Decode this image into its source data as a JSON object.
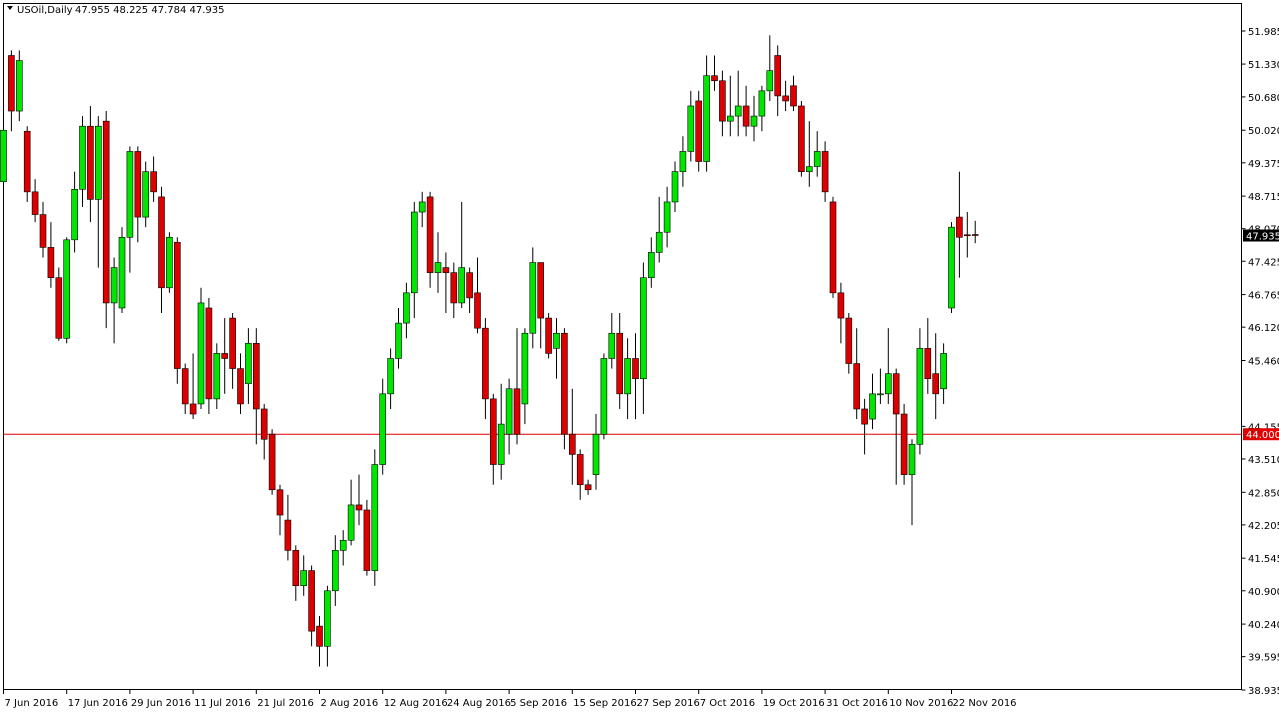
{
  "header": {
    "symbol_timeframe": "USOil,Daily",
    "ohlc": "47.955 48.225 47.784 47.935"
  },
  "chart_data": {
    "type": "candlestick",
    "symbol": "USOil",
    "timeframe": "Daily",
    "last_price": "47.935",
    "horizontal_line": {
      "value": "44.000",
      "color": "#e00000"
    },
    "grid": false,
    "price_range": [
      38.935,
      51.985
    ],
    "y_ticks": [
      "51.985",
      "51.330",
      "50.680",
      "50.020",
      "49.375",
      "48.715",
      "48.070",
      "47.425",
      "46.765",
      "46.120",
      "45.460",
      "44.155",
      "43.510",
      "42.850",
      "42.205",
      "41.545",
      "40.900",
      "40.240",
      "39.595",
      "38.935"
    ],
    "x_ticks": [
      "7 Jun 2016",
      "17 Jun 2016",
      "29 Jun 2016",
      "11 Jul 2016",
      "21 Jul 2016",
      "2 Aug 2016",
      "12 Aug 2016",
      "24 Aug 2016",
      "5 Sep 2016",
      "15 Sep 2016",
      "27 Sep 2016",
      "7 Oct 2016",
      "19 Oct 2016",
      "31 Oct 2016",
      "10 Nov 2016",
      "22 Nov 2016"
    ],
    "x_tick_bar_index": [
      0,
      8,
      16,
      24,
      32,
      40,
      48,
      56,
      64,
      72,
      80,
      88,
      96,
      104,
      112,
      120
    ],
    "colors": {
      "up": "#00e600",
      "down": "#dc0000",
      "outline": "#000000",
      "last_price_bg": "#000000",
      "level_line": "#e00000"
    },
    "candles": [
      [
        49.0,
        50.02,
        48.8,
        50.4
      ],
      [
        51.5,
        50.4,
        50.0,
        51.6
      ],
      [
        50.4,
        51.4,
        50.2,
        51.6
      ],
      [
        50.0,
        48.8,
        48.6,
        50.1
      ],
      [
        48.8,
        48.35,
        48.2,
        49.05
      ],
      [
        48.35,
        47.7,
        47.5,
        48.6
      ],
      [
        47.7,
        47.1,
        46.9,
        48.2
      ],
      [
        47.1,
        45.9,
        45.85,
        47.3
      ],
      [
        45.9,
        47.85,
        45.8,
        47.9
      ],
      [
        47.85,
        48.85,
        47.6,
        49.2
      ],
      [
        48.85,
        50.1,
        48.5,
        50.3
      ],
      [
        50.1,
        48.65,
        48.2,
        50.5
      ],
      [
        48.65,
        50.1,
        47.3,
        50.3
      ],
      [
        50.2,
        46.6,
        46.1,
        50.4
      ],
      [
        46.6,
        47.3,
        45.8,
        47.5
      ],
      [
        46.5,
        47.9,
        46.4,
        48.1
      ],
      [
        47.9,
        49.6,
        47.2,
        49.7
      ],
      [
        49.6,
        48.3,
        47.8,
        49.7
      ],
      [
        48.3,
        49.2,
        48.1,
        49.4
      ],
      [
        49.2,
        48.8,
        48.6,
        49.5
      ],
      [
        48.7,
        46.9,
        46.4,
        48.9
      ],
      [
        46.9,
        47.9,
        46.8,
        48.0
      ],
      [
        47.8,
        45.3,
        45.0,
        47.9
      ],
      [
        45.3,
        44.6,
        44.4,
        45.4
      ],
      [
        44.6,
        44.4,
        44.3,
        45.6
      ],
      [
        44.6,
        46.6,
        44.5,
        46.9
      ],
      [
        46.5,
        44.7,
        44.4,
        46.7
      ],
      [
        44.7,
        45.6,
        44.5,
        45.8
      ],
      [
        45.6,
        45.5,
        44.8,
        46.3
      ],
      [
        46.3,
        45.3,
        44.9,
        46.4
      ],
      [
        45.3,
        44.6,
        44.4,
        45.6
      ],
      [
        45.0,
        45.8,
        44.6,
        46.1
      ],
      [
        45.8,
        44.5,
        43.8,
        46.1
      ],
      [
        44.5,
        43.9,
        43.5,
        44.6
      ],
      [
        44.0,
        42.9,
        42.8,
        44.1
      ],
      [
        42.9,
        42.4,
        42.0,
        43.0
      ],
      [
        42.3,
        41.7,
        41.5,
        42.8
      ],
      [
        41.7,
        41.0,
        40.7,
        41.8
      ],
      [
        41.0,
        41.3,
        40.8,
        41.6
      ],
      [
        41.3,
        40.1,
        39.8,
        41.4
      ],
      [
        40.2,
        39.8,
        39.4,
        40.4
      ],
      [
        39.8,
        40.9,
        39.4,
        41.0
      ],
      [
        40.9,
        41.7,
        40.6,
        42.0
      ],
      [
        41.7,
        41.9,
        41.4,
        42.1
      ],
      [
        41.9,
        42.6,
        41.8,
        43.1
      ],
      [
        42.6,
        42.5,
        42.2,
        43.2
      ],
      [
        42.5,
        41.3,
        41.2,
        42.7
      ],
      [
        41.3,
        43.4,
        41.0,
        43.7
      ],
      [
        43.4,
        44.8,
        43.2,
        45.1
      ],
      [
        44.8,
        45.5,
        44.5,
        45.7
      ],
      [
        45.5,
        46.2,
        45.3,
        46.5
      ],
      [
        46.2,
        46.8,
        45.9,
        47.0
      ],
      [
        46.8,
        48.4,
        46.3,
        48.6
      ],
      [
        48.4,
        48.6,
        48.1,
        48.8
      ],
      [
        48.7,
        47.2,
        46.9,
        48.8
      ],
      [
        47.2,
        47.4,
        46.8,
        48.0
      ],
      [
        47.3,
        47.2,
        46.4,
        47.6
      ],
      [
        47.2,
        46.6,
        46.3,
        47.4
      ],
      [
        46.6,
        47.3,
        46.5,
        48.6
      ],
      [
        47.2,
        46.7,
        46.4,
        47.3
      ],
      [
        46.8,
        46.1,
        46.0,
        47.5
      ],
      [
        46.1,
        44.7,
        44.3,
        46.3
      ],
      [
        44.7,
        43.4,
        43.0,
        44.8
      ],
      [
        43.4,
        44.2,
        43.1,
        45.0
      ],
      [
        44.0,
        44.9,
        43.6,
        45.1
      ],
      [
        44.9,
        44.0,
        43.8,
        46.1
      ],
      [
        44.6,
        46.0,
        44.2,
        46.1
      ],
      [
        46.0,
        47.4,
        45.7,
        47.7
      ],
      [
        47.4,
        46.3,
        45.7,
        47.4
      ],
      [
        46.3,
        45.6,
        45.5,
        46.4
      ],
      [
        45.7,
        46.0,
        45.1,
        46.3
      ],
      [
        46.0,
        44.0,
        43.7,
        46.1
      ],
      [
        44.0,
        43.6,
        43.0,
        44.9
      ],
      [
        43.6,
        43.0,
        42.7,
        43.7
      ],
      [
        43.0,
        42.9,
        42.8,
        43.1
      ],
      [
        43.2,
        44.0,
        42.9,
        44.4
      ],
      [
        44.0,
        45.5,
        43.9,
        45.6
      ],
      [
        45.5,
        46.0,
        45.3,
        46.4
      ],
      [
        46.0,
        44.8,
        44.5,
        46.4
      ],
      [
        44.8,
        45.5,
        44.3,
        45.9
      ],
      [
        45.5,
        45.1,
        44.3,
        46.0
      ],
      [
        45.1,
        47.1,
        44.4,
        47.4
      ],
      [
        47.1,
        47.6,
        46.9,
        47.9
      ],
      [
        47.6,
        48.0,
        47.4,
        48.7
      ],
      [
        48.0,
        48.6,
        47.7,
        48.9
      ],
      [
        48.6,
        49.2,
        48.4,
        49.4
      ],
      [
        49.2,
        49.6,
        48.9,
        49.9
      ],
      [
        49.6,
        50.5,
        49.4,
        50.8
      ],
      [
        50.6,
        49.4,
        49.2,
        50.8
      ],
      [
        49.4,
        51.1,
        49.2,
        51.5
      ],
      [
        51.1,
        51.0,
        50.8,
        51.5
      ],
      [
        51.0,
        50.2,
        49.9,
        51.2
      ],
      [
        50.2,
        50.3,
        49.9,
        51.1
      ],
      [
        50.3,
        50.5,
        49.9,
        51.2
      ],
      [
        50.5,
        50.1,
        49.9,
        50.9
      ],
      [
        50.1,
        50.3,
        49.8,
        50.7
      ],
      [
        50.3,
        50.8,
        50.0,
        50.9
      ],
      [
        50.8,
        51.2,
        50.6,
        51.9
      ],
      [
        51.5,
        50.7,
        50.3,
        51.7
      ],
      [
        50.7,
        50.6,
        50.4,
        51.0
      ],
      [
        50.9,
        50.5,
        50.4,
        51.1
      ],
      [
        50.5,
        49.2,
        49.1,
        50.6
      ],
      [
        49.2,
        49.3,
        48.9,
        50.2
      ],
      [
        49.3,
        49.6,
        49.1,
        50.0
      ],
      [
        49.6,
        48.8,
        48.6,
        49.8
      ],
      [
        48.6,
        46.8,
        46.7,
        48.7
      ],
      [
        46.8,
        46.3,
        45.8,
        47.0
      ],
      [
        46.3,
        45.4,
        45.2,
        46.4
      ],
      [
        45.4,
        44.5,
        44.3,
        46.1
      ],
      [
        44.5,
        44.2,
        43.6,
        44.7
      ],
      [
        44.3,
        44.8,
        44.1,
        45.2
      ],
      [
        44.8,
        44.8,
        44.6,
        45.3
      ],
      [
        44.8,
        45.2,
        44.6,
        46.1
      ],
      [
        45.2,
        44.4,
        43.0,
        45.3
      ],
      [
        44.4,
        43.2,
        43.0,
        44.6
      ],
      [
        43.2,
        43.8,
        42.2,
        43.9
      ],
      [
        43.8,
        45.7,
        43.6,
        46.1
      ],
      [
        45.7,
        45.1,
        44.8,
        46.3
      ],
      [
        45.2,
        44.8,
        44.3,
        46.0
      ],
      [
        44.9,
        45.6,
        44.6,
        45.8
      ],
      [
        46.5,
        48.1,
        46.4,
        48.2
      ],
      [
        48.3,
        47.9,
        47.1,
        49.2
      ],
      [
        47.95,
        47.93,
        47.5,
        48.4
      ],
      [
        47.955,
        47.935,
        47.784,
        48.225
      ]
    ]
  }
}
